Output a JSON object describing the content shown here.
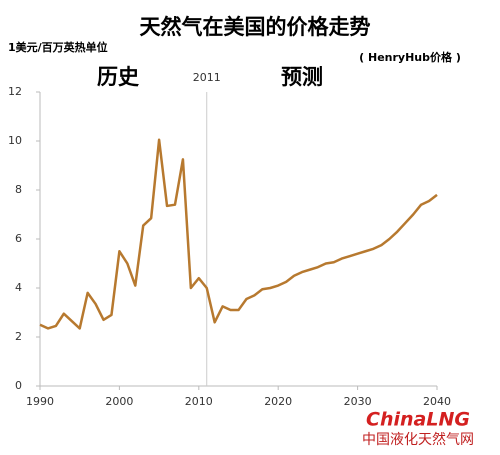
{
  "chart_data": {
    "type": "line",
    "title": "天然气在美国的价格走势",
    "y_label": "1美元/百万英热单位",
    "subtitle": "( HenryHub价格 )",
    "annotations": [
      "历史",
      "预测"
    ],
    "vline": 2011,
    "watermark": [
      "ChinaLNG",
      "中国液化天然气网"
    ],
    "x": [
      1990,
      1991,
      1992,
      1993,
      1994,
      1995,
      1996,
      1997,
      1998,
      1999,
      2000,
      2001,
      2002,
      2003,
      2004,
      2005,
      2006,
      2007,
      2008,
      2009,
      2010,
      2011,
      2012,
      2013,
      2014,
      2015,
      2016,
      2017,
      2018,
      2019,
      2020,
      2021,
      2022,
      2023,
      2024,
      2025,
      2026,
      2027,
      2028,
      2029,
      2030,
      2031,
      2032,
      2033,
      2034,
      2035,
      2036,
      2037,
      2038,
      2039,
      2040
    ],
    "series": [
      {
        "name": "HenryHub",
        "color": "#b7792f",
        "values": [
          2.5,
          2.35,
          2.45,
          2.95,
          2.65,
          2.35,
          3.8,
          3.35,
          2.7,
          2.9,
          5.5,
          5.0,
          4.1,
          6.55,
          6.85,
          10.05,
          7.35,
          7.4,
          9.25,
          4.0,
          4.4,
          4.0,
          2.6,
          3.25,
          3.1,
          3.1,
          3.55,
          3.7,
          3.95,
          4.0,
          4.1,
          4.25,
          4.5,
          4.65,
          4.75,
          4.85,
          5.0,
          5.05,
          5.2,
          5.3,
          5.4,
          5.5,
          5.6,
          5.75,
          6.0,
          6.3,
          6.65,
          7.0,
          7.4,
          7.55,
          7.8
        ]
      }
    ],
    "xlim": [
      1990,
      2040
    ],
    "xticks": [
      1990,
      2000,
      2010,
      2020,
      2030,
      2040
    ],
    "ylim": [
      0,
      12
    ],
    "yticks": [
      0,
      2,
      4,
      6,
      8,
      10,
      12
    ],
    "grid": false
  }
}
